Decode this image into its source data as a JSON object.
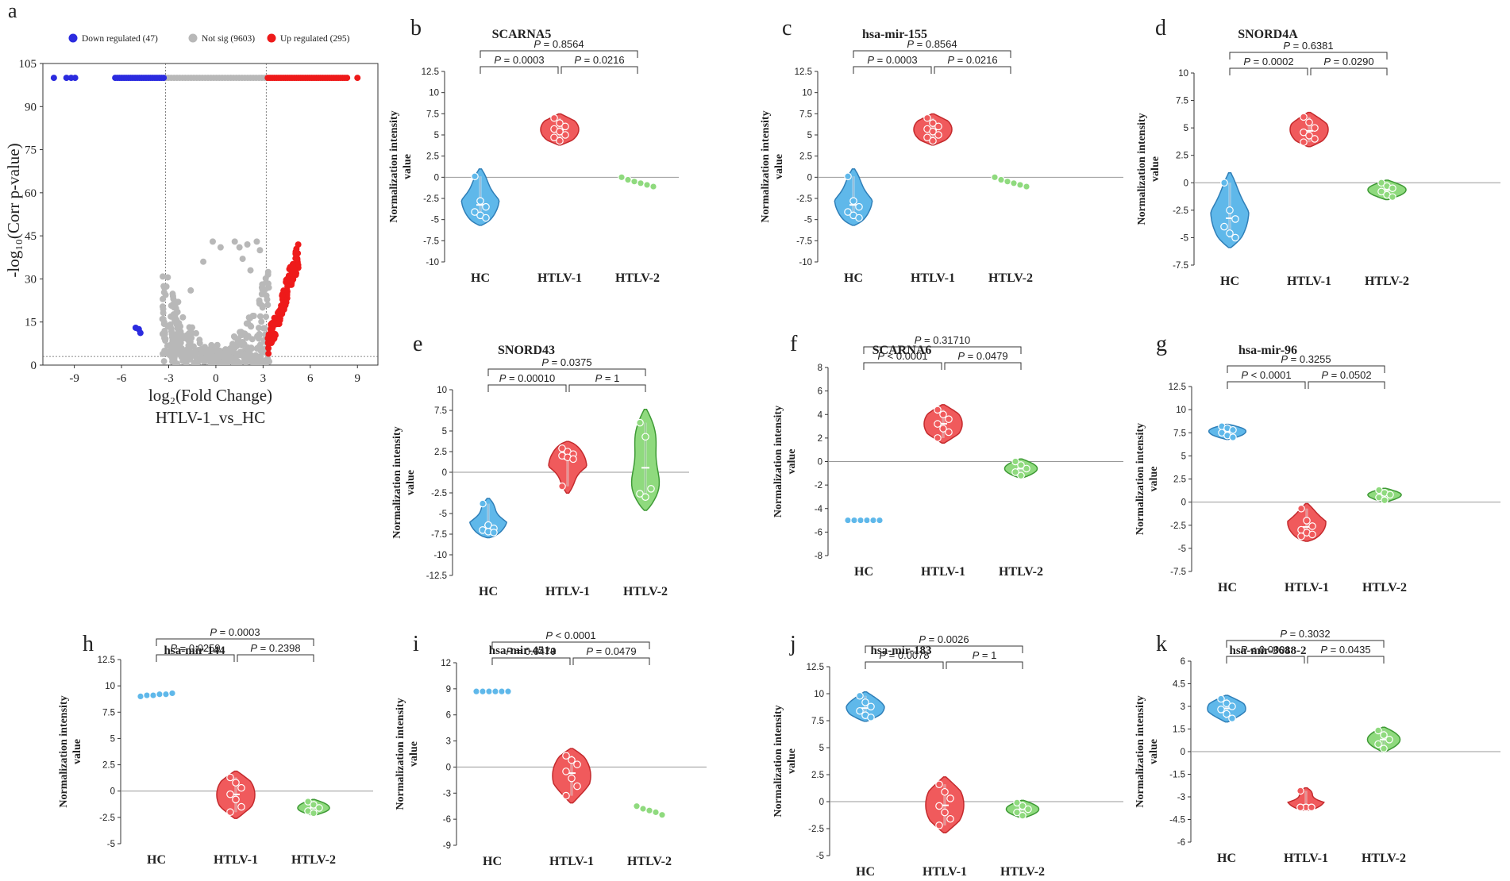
{
  "colors": {
    "hc": "#5fb8ea",
    "hc_stroke": "#2f7fb8",
    "htlv1": "#f05a5c",
    "htlv1_stroke": "#c42a2d",
    "htlv2": "#8fda7e",
    "htlv2_stroke": "#3e9a35",
    "down": "#2b2bdf",
    "notsig": "#b8b8b8",
    "up": "#ee1a1a"
  },
  "volcano": {
    "letter": "a",
    "legend": [
      {
        "label": "Down regulated (47)",
        "color": "#2b2bdf"
      },
      {
        "label": "Not sig (9603)",
        "color": "#b8b8b8"
      },
      {
        "label": "Up regulated (295)",
        "color": "#ee1a1a"
      }
    ],
    "xlabel": "log₂(Fold Change)",
    "subtitle": "HTLV-1_vs_HC",
    "ylabel": "-log₁₀(Corr p-value)"
  },
  "chart_data": [
    {
      "type": "scatter",
      "id": "a",
      "title": "HTLV-1_vs_HC",
      "xlabel": "log2(Fold Change)",
      "ylabel": "-log10(Corr p-value)",
      "xlim": [
        -11,
        10.3
      ],
      "ylim": [
        0,
        105
      ],
      "xticks": [
        -9,
        -6,
        -3,
        0,
        3,
        6,
        9
      ],
      "yticks": [
        0,
        15,
        30,
        45,
        60,
        75,
        90,
        105
      ],
      "thresholds": {
        "fc": [
          -3.2,
          3.2
        ],
        "p": 3
      },
      "series": [
        {
          "name": "Down regulated (47)",
          "x": [
            -10.2,
            -9.4,
            -9.1,
            -8.9,
            -6.4,
            -6.2,
            -6.0,
            -5.8,
            -5.5,
            -5.2,
            -4.9,
            -4.6,
            -4.3,
            -4.0,
            -3.7,
            -3.4,
            -3.3
          ],
          "y": [
            100,
            100,
            100,
            100,
            100,
            100,
            100,
            100,
            100,
            100,
            100,
            100,
            100,
            100,
            100,
            100,
            100
          ]
        },
        {
          "name": "Down regulated (47) low",
          "x": [
            -5.1,
            -4.9,
            -4.8
          ],
          "y": [
            13,
            12.5,
            11
          ]
        },
        {
          "name": "Not sig (9603)",
          "x": [
            -3.0,
            -2.5,
            -2.0,
            -1.5,
            -1.0,
            -0.5,
            0,
            0.5,
            1.0,
            1.5,
            2.0,
            2.5,
            3.0
          ],
          "y": [
            100,
            100,
            100,
            100,
            100,
            100,
            100,
            100,
            100,
            100,
            100,
            100,
            100
          ]
        },
        {
          "name": "Up regulated (295)",
          "x": [
            3.3,
            3.8,
            4.3,
            4.8,
            5.3,
            5.8,
            6.3,
            6.8,
            7.3,
            7.8,
            8.3,
            9.0
          ],
          "y": [
            100,
            100,
            100,
            100,
            100,
            100,
            100,
            100,
            100,
            100,
            100,
            100
          ]
        }
      ]
    },
    {
      "type": "violin",
      "id": "b",
      "title": "SCARNA5",
      "ylim": [
        -10,
        12.5
      ],
      "yticks": [
        -10,
        -7.5,
        -5,
        -2.5,
        0,
        2.5,
        5,
        7.5,
        10,
        12.5
      ],
      "categories": [
        "HC",
        "HTLV-1",
        "HTLV-2"
      ],
      "series": [
        {
          "name": "HC",
          "values": [
            0.1,
            -2.8,
            -3.5,
            -4.1,
            -4.5,
            -4.8
          ]
        },
        {
          "name": "HTLV-1",
          "values": [
            7.0,
            6.4,
            6.0,
            5.7,
            5.4,
            5.0,
            4.7,
            4.3
          ]
        },
        {
          "name": "HTLV-2",
          "values": [
            0,
            -0.3,
            -0.5,
            -0.7,
            -0.9,
            -1.1
          ]
        }
      ],
      "comparisons": [
        {
          "text": "P = 0.0003"
        },
        {
          "text": "P = 0.0216"
        },
        {
          "text": "P = 0.8564"
        }
      ],
      "xlabel": "",
      "ylabel": "Normalization intensity value"
    },
    {
      "type": "violin",
      "id": "c",
      "title": "hsa-mir-155",
      "ylim": [
        -10,
        12.5
      ],
      "yticks": [
        -10,
        -7.5,
        -5,
        -2.5,
        0,
        2.5,
        5,
        7.5,
        10,
        12.5
      ],
      "categories": [
        "HC",
        "HTLV-1",
        "HTLV-2"
      ],
      "series": [
        {
          "name": "HC",
          "values": [
            0.1,
            -2.8,
            -3.5,
            -4.1,
            -4.5,
            -4.8
          ]
        },
        {
          "name": "HTLV-1",
          "values": [
            7.0,
            6.4,
            6.0,
            5.7,
            5.4,
            5.0,
            4.7,
            4.3
          ]
        },
        {
          "name": "HTLV-2",
          "values": [
            0,
            -0.3,
            -0.5,
            -0.7,
            -0.9,
            -1.1
          ]
        }
      ],
      "comparisons": [
        {
          "text": "P = 0.0003"
        },
        {
          "text": "P = 0.0216"
        },
        {
          "text": "P = 0.8564"
        }
      ],
      "xlabel": "",
      "ylabel": "Normalization intensity value"
    },
    {
      "type": "violin",
      "id": "d",
      "title": "SNORD4A",
      "ylim": [
        -7.5,
        10
      ],
      "yticks": [
        -7.5,
        -5,
        -2.5,
        0,
        2.5,
        5,
        7.5,
        10
      ],
      "categories": [
        "HC",
        "HTLV-1",
        "HTLV-2"
      ],
      "series": [
        {
          "name": "HC",
          "values": [
            0,
            -2.5,
            -3.3,
            -4.0,
            -4.6,
            -5.0
          ]
        },
        {
          "name": "HTLV-1",
          "values": [
            6.0,
            5.5,
            5.0,
            4.6,
            4.3,
            4.0,
            3.7
          ]
        },
        {
          "name": "HTLV-2",
          "values": [
            0,
            -0.3,
            -0.5,
            -0.8,
            -1.1,
            -1.3
          ]
        }
      ],
      "comparisons": [
        {
          "text": "P = 0.0002"
        },
        {
          "text": "P = 0.0290"
        },
        {
          "text": "P = 0.6381"
        }
      ],
      "xlabel": "",
      "ylabel": "Normalization intensity value"
    },
    {
      "type": "violin",
      "id": "e",
      "title": "SNORD43",
      "ylim": [
        -12.5,
        10
      ],
      "yticks": [
        -12.5,
        -10,
        -7.5,
        -5,
        -2.5,
        0,
        2.5,
        5,
        7.5,
        10
      ],
      "categories": [
        "HC",
        "HTLV-1",
        "HTLV-2"
      ],
      "series": [
        {
          "name": "HC",
          "values": [
            -3.8,
            -6.4,
            -6.8,
            -7.0,
            -7.2,
            -7.3
          ]
        },
        {
          "name": "HTLV-1",
          "values": [
            2.9,
            2.5,
            2.2,
            2.0,
            1.8,
            1.6,
            -1.7
          ]
        },
        {
          "name": "HTLV-2",
          "values": [
            6.0,
            4.3,
            -2.0,
            -2.6,
            -3.0
          ]
        }
      ],
      "comparisons": [
        {
          "text": "P = 0.00010"
        },
        {
          "text": "P = 1"
        },
        {
          "text": "P = 0.0375"
        }
      ],
      "xlabel": "",
      "ylabel": "Normalization intensity value"
    },
    {
      "type": "violin",
      "id": "f",
      "title": "SCARNA6",
      "ylim": [
        -8,
        8
      ],
      "yticks": [
        -8,
        -6,
        -4,
        -2,
        0,
        2,
        4,
        6,
        8
      ],
      "categories": [
        "HC",
        "HTLV-1",
        "HTLV-2"
      ],
      "series": [
        {
          "name": "HC",
          "values": [
            -5,
            -5,
            -5,
            -5,
            -5,
            -5
          ]
        },
        {
          "name": "HTLV-1",
          "values": [
            4.4,
            4.0,
            3.6,
            3.2,
            2.8,
            2.5,
            2.0
          ]
        },
        {
          "name": "HTLV-2",
          "values": [
            0,
            -0.3,
            -0.6,
            -0.9,
            -1.2
          ]
        }
      ],
      "comparisons": [
        {
          "text": "P < 0.0001"
        },
        {
          "text": "P = 0.0479"
        },
        {
          "text": "P = 0.31710"
        }
      ],
      "xlabel": "",
      "ylabel": "Normalization intensity value"
    },
    {
      "type": "violin",
      "id": "g",
      "title": "hsa-mir-96",
      "ylim": [
        -7.5,
        12.5
      ],
      "yticks": [
        -7.5,
        -5,
        -2.5,
        0,
        2.5,
        5,
        7.5,
        10,
        12.5
      ],
      "categories": [
        "HC",
        "HTLV-1",
        "HTLV-2"
      ],
      "series": [
        {
          "name": "HC",
          "values": [
            8.2,
            8.0,
            7.8,
            7.5,
            7.2,
            7.0
          ]
        },
        {
          "name": "HTLV-1",
          "values": [
            -0.7,
            -2.0,
            -2.6,
            -3.0,
            -3.3,
            -3.5,
            -3.7
          ]
        },
        {
          "name": "HTLV-2",
          "values": [
            1.3,
            1.0,
            0.8,
            0.5,
            0.2
          ]
        }
      ],
      "comparisons": [
        {
          "text": "P < 0.0001"
        },
        {
          "text": "P = 0.0502"
        },
        {
          "text": "P = 0.3255"
        }
      ],
      "xlabel": "",
      "ylabel": "Normalization intensity value"
    },
    {
      "type": "violin",
      "id": "h",
      "title": "hsa-mir-144",
      "ylim": [
        -5,
        12.5
      ],
      "yticks": [
        -5,
        -2.5,
        0,
        2.5,
        5,
        7.5,
        10,
        12.5
      ],
      "categories": [
        "HC",
        "HTLV-1",
        "HTLV-2"
      ],
      "series": [
        {
          "name": "HC",
          "values": [
            9.0,
            9.1,
            9.1,
            9.2,
            9.2,
            9.3
          ]
        },
        {
          "name": "HTLV-1",
          "values": [
            1.3,
            0.8,
            0.3,
            -0.3,
            -0.8,
            -1.5,
            -2.0
          ]
        },
        {
          "name": "HTLV-2",
          "values": [
            -1.0,
            -1.3,
            -1.6,
            -1.9,
            -2.1
          ]
        }
      ],
      "comparisons": [
        {
          "text": "P = 0.0259"
        },
        {
          "text": "P = 0.2398"
        },
        {
          "text": "P = 0.0003"
        }
      ],
      "xlabel": "",
      "ylabel": "Normalization intensity value"
    },
    {
      "type": "violin",
      "id": "i",
      "title": "hsa-mir-451a",
      "ylim": [
        -9,
        12
      ],
      "yticks": [
        -9,
        -6,
        -3,
        0,
        3,
        6,
        9,
        12
      ],
      "categories": [
        "HC",
        "HTLV-1",
        "HTLV-2"
      ],
      "series": [
        {
          "name": "HC",
          "values": [
            8.7,
            8.7,
            8.7,
            8.7,
            8.7,
            8.7
          ]
        },
        {
          "name": "HTLV-1",
          "values": [
            1.3,
            0.8,
            0.3,
            -0.5,
            -1.3,
            -2.2,
            -3.3
          ]
        },
        {
          "name": "HTLV-2",
          "values": [
            -4.5,
            -4.8,
            -5.0,
            -5.2,
            -5.5
          ]
        }
      ],
      "comparisons": [
        {
          "text": "P = 0.0479"
        },
        {
          "text": "P = 0.0479"
        },
        {
          "text": "P < 0.0001"
        }
      ],
      "xlabel": "",
      "ylabel": "Normalization intensity value"
    },
    {
      "type": "violin",
      "id": "j",
      "title": "hsa-mir-183",
      "ylim": [
        -5,
        12.5
      ],
      "yticks": [
        -5,
        -2.5,
        0,
        2.5,
        5,
        7.5,
        10,
        12.5
      ],
      "categories": [
        "HC",
        "HTLV-1",
        "HTLV-2"
      ],
      "series": [
        {
          "name": "HC",
          "values": [
            9.8,
            9.2,
            8.8,
            8.4,
            8.0,
            7.8
          ]
        },
        {
          "name": "HTLV-1",
          "values": [
            1.6,
            0.9,
            0.3,
            -0.4,
            -1.0,
            -1.6,
            -2.2
          ]
        },
        {
          "name": "HTLV-2",
          "values": [
            -0.1,
            -0.4,
            -0.7,
            -1.0,
            -1.3
          ]
        }
      ],
      "comparisons": [
        {
          "text": "P = 0.0078"
        },
        {
          "text": "P = 1"
        },
        {
          "text": "P = 0.0026"
        }
      ],
      "xlabel": "",
      "ylabel": "Normalization intensity value"
    },
    {
      "type": "violin",
      "id": "k",
      "title": "hsa-mir-3688-2",
      "ylim": [
        -6,
        6
      ],
      "yticks": [
        -6,
        -4.5,
        -3,
        -1.5,
        0,
        1.5,
        3,
        4.5,
        6
      ],
      "categories": [
        "HC",
        "HTLV-1",
        "HTLV-2"
      ],
      "series": [
        {
          "name": "HC",
          "values": [
            3.5,
            3.2,
            3.0,
            2.8,
            2.5,
            2.2
          ]
        },
        {
          "name": "HTLV-1",
          "values": [
            -2.6,
            -3.7,
            -3.7,
            -3.7,
            -3.7,
            -3.7,
            -3.7
          ]
        },
        {
          "name": "HTLV-2",
          "values": [
            1.4,
            1.1,
            0.8,
            0.5,
            0.2
          ]
        }
      ],
      "comparisons": [
        {
          "text": "P < 0.0001"
        },
        {
          "text": "P = 0.0435"
        },
        {
          "text": "P = 0.3032"
        }
      ],
      "xlabel": "",
      "ylabel": "Normalization intensity value"
    }
  ],
  "violin_ylabel": [
    "Normalization intensity",
    "value"
  ]
}
